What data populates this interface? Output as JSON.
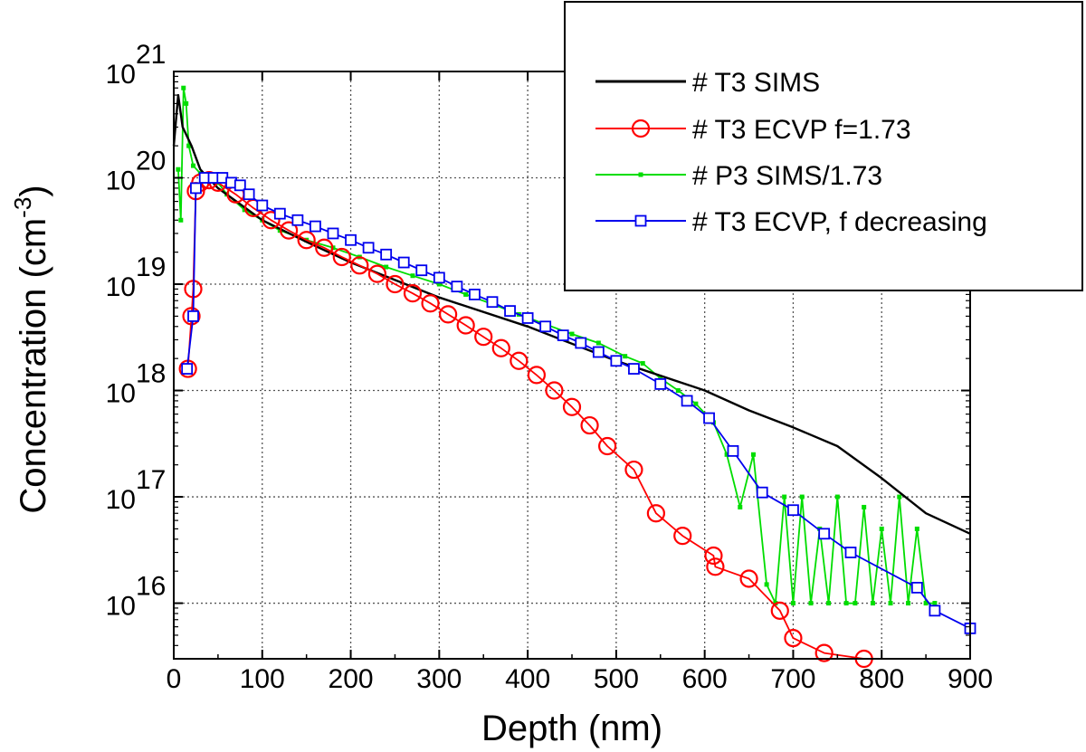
{
  "chart_data": {
    "type": "line",
    "xlabel": "Depth (nm)",
    "ylabel_main": "Concentration (cm",
    "ylabel_sup": "-3",
    "ylabel_close": ")",
    "xlim": [
      0,
      900
    ],
    "ylog": true,
    "ylim": [
      3000000000000000.0,
      1e+21
    ],
    "x_ticks": [
      0,
      100,
      200,
      300,
      400,
      500,
      600,
      700,
      800,
      900
    ],
    "x_tick_labels": [
      "0",
      "100",
      "200",
      "300",
      "400",
      "500",
      "600",
      "700",
      "800",
      "900"
    ],
    "y_ticks": [
      1e+16,
      1e+17,
      1e+18,
      1e+19,
      1e+20,
      1e+21
    ],
    "y_tick_base": "10",
    "y_tick_exponents": [
      "16",
      "17",
      "18",
      "19",
      "20",
      "21"
    ],
    "grid": true,
    "legend_position": "top-right",
    "series": [
      {
        "name": "# T3 SIMS",
        "color": "#000000",
        "marker": "none",
        "x": [
          0,
          5,
          10,
          20,
          30,
          50,
          100,
          150,
          200,
          300,
          400,
          500,
          600,
          650,
          700,
          750,
          800,
          850,
          900
        ],
        "y": [
          2e+20,
          6e+20,
          3e+20,
          2e+20,
          1.2e+20,
          8e+19,
          4e+19,
          2.5e+19,
          1.6e+19,
          7.5e+18,
          4e+18,
          1.9e+18,
          1e+18,
          6.5e+17,
          4.5e+17,
          3e+17,
          1.5e+17,
          7e+16,
          4.5e+16
        ]
      },
      {
        "name": "# T3 ECVP f=1.73",
        "color": "#ff0000",
        "marker": "circle",
        "x": [
          16,
          20,
          22,
          25,
          30,
          40,
          50,
          70,
          90,
          110,
          130,
          150,
          170,
          190,
          210,
          230,
          250,
          270,
          290,
          310,
          330,
          350,
          370,
          390,
          410,
          430,
          450,
          470,
          490,
          520,
          545,
          575,
          610,
          612,
          650,
          685,
          700,
          735,
          780
        ],
        "y": [
          1.6e+18,
          5e+18,
          9e+18,
          7.5e+19,
          9e+19,
          9.5e+19,
          9e+19,
          7e+19,
          5.2e+19,
          4e+19,
          3.2e+19,
          2.6e+19,
          2.2e+19,
          1.8e+19,
          1.5e+19,
          1.25e+19,
          1e+19,
          8.2e+18,
          6.6e+18,
          5.2e+18,
          4.1e+18,
          3.2e+18,
          2.5e+18,
          1.9e+18,
          1.4e+18,
          1e+18,
          7e+17,
          4.7e+17,
          3e+17,
          1.8e+17,
          7e+16,
          4.3e+16,
          2.8e+16,
          2.2e+16,
          1.7e+16,
          8500000000000000.0,
          4700000000000000.0,
          3400000000000000.0,
          2900000000000000.0
        ]
      },
      {
        "name": "# P3 SIMS/1.73",
        "color": "#00dd00",
        "marker": "small-square",
        "x": [
          5,
          8,
          11,
          14,
          17,
          22,
          30,
          40,
          50,
          60,
          80,
          100,
          120,
          150,
          180,
          210,
          240,
          270,
          300,
          330,
          360,
          390,
          420,
          450,
          480,
          510,
          530,
          550,
          570,
          590,
          610,
          625,
          640,
          655,
          670,
          680,
          690,
          700,
          710,
          720,
          730,
          740,
          750,
          760,
          770,
          780,
          790,
          800,
          810,
          820,
          830,
          840,
          850,
          860
        ],
        "y": [
          1.2e+20,
          4e+19,
          7e+20,
          5e+20,
          2e+20,
          1.3e+20,
          1.1e+20,
          1.05e+20,
          9e+19,
          7e+19,
          5e+19,
          4e+19,
          3.2e+19,
          2.6e+19,
          2.2e+19,
          1.8e+19,
          1.45e+19,
          1.2e+19,
          1e+19,
          8e+18,
          6.5e+18,
          5.2e+18,
          4.2e+18,
          3.4e+18,
          2.8e+18,
          2.1e+18,
          1.8e+18,
          1.3e+18,
          1e+18,
          7.5e+17,
          5e+17,
          2.5e+17,
          8e+16,
          2.5e+17,
          1.5e+16,
          1e+16,
          1e+17,
          1e+16,
          1e+17,
          1e+16,
          5e+16,
          1e+16,
          1e+17,
          1e+16,
          1e+16,
          8e+16,
          1e+16,
          5e+16,
          1e+16,
          1e+17,
          1e+16,
          5e+16,
          1e+16,
          1e+16
        ]
      },
      {
        "name": "# T3 ECVP, f decreasing",
        "color": "#0000ee",
        "marker": "square",
        "x": [
          15,
          22,
          25,
          35,
          45,
          55,
          65,
          75,
          85,
          100,
          120,
          140,
          160,
          180,
          200,
          220,
          240,
          260,
          280,
          300,
          320,
          340,
          360,
          380,
          400,
          420,
          440,
          460,
          480,
          500,
          520,
          550,
          580,
          605,
          632,
          665,
          700,
          735,
          765,
          840,
          860,
          900
        ],
        "y": [
          1.6e+18,
          5e+18,
          8e+19,
          1e+20,
          1e+20,
          1e+20,
          9e+19,
          8.5e+19,
          7e+19,
          5.5e+19,
          4.6e+19,
          4e+19,
          3.5e+19,
          3e+19,
          2.6e+19,
          2.2e+19,
          1.9e+19,
          1.6e+19,
          1.35e+19,
          1.15e+19,
          9.5e+18,
          8e+18,
          6.8e+18,
          5.6e+18,
          4.8e+18,
          4e+18,
          3.3e+18,
          2.8e+18,
          2.3e+18,
          1.9e+18,
          1.6e+18,
          1.15e+18,
          8e+17,
          5.5e+17,
          2.7e+17,
          1.1e+17,
          7.5e+16,
          4.5e+16,
          3e+16,
          1.4e+16,
          8500000000000000.0,
          5800000000000000.0
        ]
      }
    ]
  }
}
